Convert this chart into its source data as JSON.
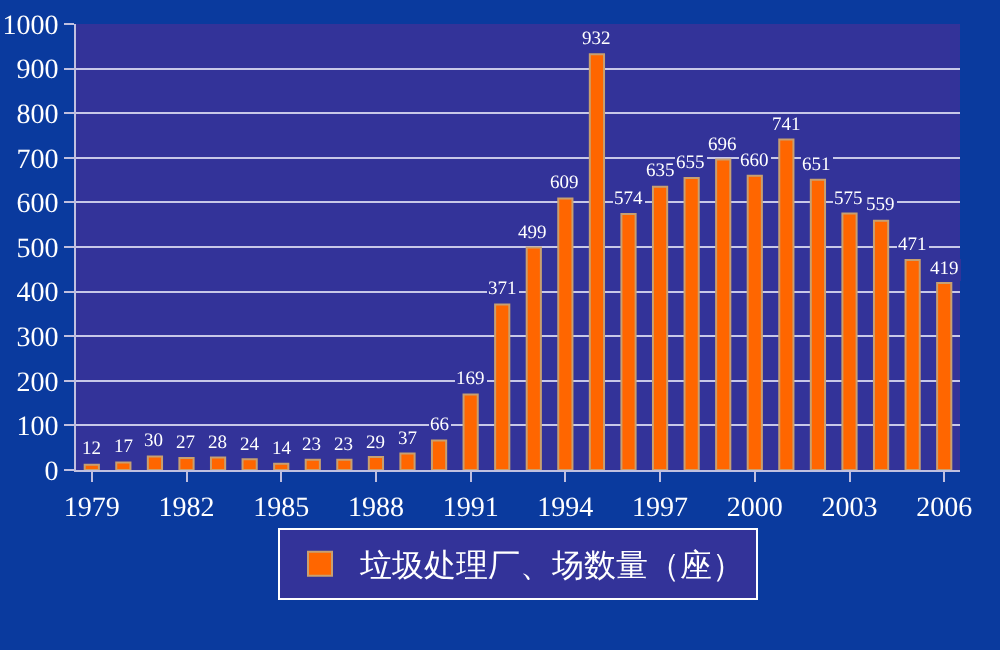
{
  "chart_data": {
    "type": "bar",
    "x": [
      1979,
      1980,
      1981,
      1982,
      1983,
      1984,
      1985,
      1986,
      1987,
      1988,
      1989,
      1990,
      1991,
      1992,
      1993,
      1994,
      1995,
      1996,
      1997,
      1998,
      1999,
      2000,
      2001,
      2002,
      2003,
      2004,
      2005,
      2006
    ],
    "series": [
      {
        "name": "垃圾处理厂、场数量（座）",
        "color": "#ff6600",
        "values": [
          12,
          17,
          30,
          27,
          28,
          24,
          14,
          23,
          23,
          29,
          37,
          66,
          169,
          371,
          499,
          609,
          932,
          574,
          635,
          655,
          696,
          660,
          741,
          651,
          575,
          559,
          471,
          419
        ]
      }
    ],
    "xlim": [
      1978.5,
      2006.5
    ],
    "xticks": [
      1979,
      1982,
      1985,
      1988,
      1991,
      1994,
      1997,
      2000,
      2003,
      2006
    ],
    "ylim": [
      0,
      1000
    ],
    "yticks": [
      0,
      100,
      200,
      300,
      400,
      500,
      600,
      700,
      800,
      900,
      1000
    ],
    "grid": "y",
    "legend": "bottom",
    "data_labels": true
  }
}
